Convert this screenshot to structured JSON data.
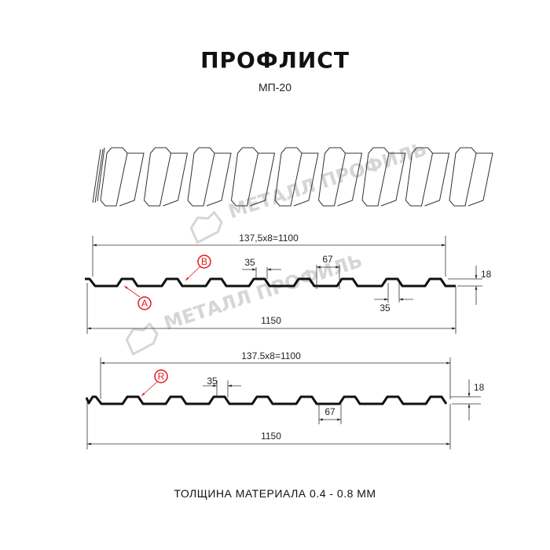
{
  "header": {
    "title": "ПРОФЛИСТ",
    "subtitle": "МП-20"
  },
  "watermark": {
    "text": "МЕТАЛЛ ПРОФИЛЬ"
  },
  "profile_a": {
    "top_dimension": "137,5x8=1100",
    "bottom_dimension": "1150",
    "rib_top": "35",
    "rib_gap": "67",
    "rib_bottom": "35",
    "height": "18",
    "markers": [
      "A",
      "B"
    ]
  },
  "profile_b": {
    "top_dimension": "137.5x8=1100",
    "bottom_dimension": "1150",
    "rib_top": "35",
    "rib_gap": "67",
    "height": "18",
    "markers": [
      "R"
    ]
  },
  "footer": {
    "thickness": "ТОЛЩИНА МАТЕРИАЛА 0.4 - 0.8 ММ"
  },
  "colors": {
    "marker": "#e3191c",
    "profile": "#111111",
    "watermark": "#d6d6d6"
  }
}
